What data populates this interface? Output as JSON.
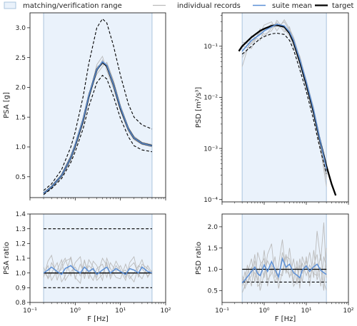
{
  "legend": {
    "range_label": "matching/verification range",
    "records_label": "individual records",
    "mean_label": "suite mean",
    "target_label": "target"
  },
  "colors": {
    "band_fill": "#eaf2fb",
    "band_edge": "#aac4de",
    "records": "#bbbbbb",
    "mean": "#5b8fd6",
    "target": "#000000"
  },
  "chart_data": [
    {
      "type": "line",
      "panel": "top-left",
      "xlabel": "",
      "ylabel": "PSA [g]",
      "xscale": "log",
      "xlim": [
        0.1,
        100
      ],
      "ylim": [
        0.15,
        3.25
      ],
      "xticks": [
        0.1,
        1,
        10,
        100
      ],
      "xtick_labels": [],
      "yticks": [
        0.5,
        1.0,
        1.5,
        2.0,
        2.5,
        3.0
      ],
      "ytick_labels": [
        "0.5",
        "1.0",
        "1.5",
        "2.0",
        "2.5",
        "3.0"
      ],
      "range": [
        0.2,
        50
      ],
      "x": [
        0.2,
        0.3,
        0.5,
        0.8,
        1,
        1.5,
        2,
        3,
        4,
        5,
        7,
        10,
        15,
        20,
        30,
        50
      ],
      "series": [
        {
          "name": "target",
          "style": "solid",
          "values": [
            0.22,
            0.33,
            0.52,
            0.82,
            1.02,
            1.45,
            1.85,
            2.3,
            2.42,
            2.36,
            2.05,
            1.65,
            1.3,
            1.15,
            1.06,
            1.02
          ]
        },
        {
          "style": "dashed",
          "values": [
            0.27,
            0.38,
            0.62,
            1.0,
            1.25,
            1.85,
            2.4,
            3.0,
            3.15,
            3.08,
            2.7,
            2.2,
            1.72,
            1.5,
            1.37,
            1.3
          ]
        },
        {
          "style": "dashed",
          "values": [
            0.2,
            0.3,
            0.47,
            0.74,
            0.92,
            1.31,
            1.68,
            2.08,
            2.2,
            2.14,
            1.85,
            1.48,
            1.17,
            1.02,
            0.95,
            0.92
          ]
        },
        {
          "name": "suite mean",
          "style": "mean",
          "values": [
            0.22,
            0.33,
            0.52,
            0.82,
            1.03,
            1.46,
            1.86,
            2.3,
            2.43,
            2.37,
            2.05,
            1.66,
            1.3,
            1.15,
            1.06,
            1.02
          ]
        }
      ],
      "records": [
        [
          0.21,
          0.32,
          0.5,
          0.78,
          0.99,
          1.4,
          1.83,
          2.38,
          2.52,
          2.28,
          1.98,
          1.6,
          1.26,
          1.12,
          1.04,
          1.0
        ],
        [
          0.23,
          0.34,
          0.54,
          0.86,
          1.06,
          1.5,
          1.9,
          2.22,
          2.35,
          2.42,
          2.12,
          1.7,
          1.33,
          1.18,
          1.08,
          1.04
        ],
        [
          0.22,
          0.33,
          0.53,
          0.8,
          1.04,
          1.44,
          1.82,
          2.26,
          2.46,
          2.33,
          2.0,
          1.63,
          1.29,
          1.14,
          1.05,
          1.01
        ],
        [
          0.22,
          0.32,
          0.51,
          0.83,
          1.01,
          1.48,
          1.88,
          2.35,
          2.38,
          2.4,
          2.08,
          1.68,
          1.31,
          1.16,
          1.07,
          1.03
        ]
      ]
    },
    {
      "type": "line",
      "panel": "top-right",
      "xlabel": "",
      "ylabel": "PSD [m²/s³]",
      "xscale": "log",
      "yscale": "log",
      "xlim": [
        0.1,
        100
      ],
      "ylim": [
        9e-05,
        0.45
      ],
      "xticks": [
        0.1,
        1,
        10,
        100
      ],
      "xtick_labels": [],
      "yticks": [
        0.0001,
        0.001,
        0.01,
        0.1
      ],
      "ytick_labels": [
        "10⁻⁴",
        "10⁻³",
        "10⁻²",
        "10⁻¹"
      ],
      "range": [
        0.3,
        30
      ],
      "x": [
        0.25,
        0.3,
        0.5,
        0.8,
        1,
        1.5,
        2,
        3,
        4,
        5,
        7,
        10,
        15,
        20,
        30,
        40,
        50
      ],
      "series": [
        {
          "name": "target",
          "style": "solid",
          "values": [
            0.08,
            0.1,
            0.15,
            0.2,
            0.22,
            0.25,
            0.26,
            0.24,
            0.18,
            0.12,
            0.05,
            0.018,
            0.005,
            0.0017,
            0.00045,
            0.0002,
            0.00012
          ]
        },
        {
          "style": "dashed",
          "values": [
            null,
            0.07,
            0.1,
            0.14,
            0.155,
            0.175,
            0.18,
            0.17,
            0.13,
            0.085,
            0.035,
            0.013,
            0.0035,
            0.0012,
            0.00032,
            null,
            null
          ]
        },
        {
          "name": "suite mean",
          "style": "mean",
          "values": [
            null,
            0.08,
            0.13,
            0.17,
            0.2,
            0.24,
            0.27,
            0.25,
            0.19,
            0.13,
            0.055,
            0.02,
            0.0055,
            0.0018,
            0.0004,
            null,
            null
          ]
        }
      ],
      "records": [
        [
          null,
          0.06,
          0.12,
          0.18,
          0.26,
          0.3,
          0.2,
          0.33,
          0.22,
          0.15,
          0.06,
          0.022,
          0.006,
          0.002,
          0.0003,
          null,
          null
        ],
        [
          null,
          0.1,
          0.09,
          0.22,
          0.17,
          0.2,
          0.32,
          0.21,
          0.16,
          0.1,
          0.045,
          0.016,
          0.0045,
          0.0015,
          0.00018,
          null,
          null
        ],
        [
          null,
          0.04,
          0.16,
          0.13,
          0.21,
          0.27,
          0.24,
          0.3,
          0.2,
          0.14,
          0.052,
          0.019,
          0.005,
          0.0019,
          0.0005,
          null,
          null
        ],
        [
          null,
          0.12,
          0.11,
          0.19,
          0.15,
          0.23,
          0.29,
          0.19,
          0.24,
          0.11,
          0.064,
          0.021,
          0.0062,
          0.0016,
          0.00025,
          null,
          null
        ]
      ]
    },
    {
      "type": "line",
      "panel": "bottom-left",
      "xlabel": "F [Hz]",
      "ylabel": "PSA ratio",
      "xscale": "log",
      "xlim": [
        0.1,
        100
      ],
      "ylim": [
        0.8,
        1.4
      ],
      "xticks": [
        0.1,
        1,
        10,
        100
      ],
      "xtick_labels": [
        "10⁻¹",
        "10⁰",
        "10¹",
        "10²"
      ],
      "yticks": [
        0.8,
        0.9,
        1.0,
        1.1,
        1.2,
        1.3,
        1.4
      ],
      "ytick_labels": [
        "0.8",
        "0.9",
        "1.0",
        "1.1",
        "1.2",
        "1.3",
        "1.4"
      ],
      "range": [
        0.2,
        50
      ],
      "x": [
        0.2,
        0.25,
        0.3,
        0.4,
        0.5,
        0.6,
        0.8,
        1,
        1.3,
        1.6,
        2,
        2.5,
        3,
        4,
        5,
        6,
        8,
        10,
        13,
        16,
        20,
        25,
        30,
        40,
        50
      ],
      "series": [
        {
          "name": "target",
          "style": "solid",
          "values": [
            1.0,
            1.0,
            1.0,
            1.0,
            1.0,
            1.0,
            1.0,
            1.0,
            1.0,
            1.0,
            1.0,
            1.0,
            1.0,
            1.0,
            1.0,
            1.0,
            1.0,
            1.0,
            1.0,
            1.0,
            1.0,
            1.0,
            1.0,
            1.0,
            1.0
          ]
        },
        {
          "style": "dashed",
          "values": [
            1.3,
            1.3,
            1.3,
            1.3,
            1.3,
            1.3,
            1.3,
            1.3,
            1.3,
            1.3,
            1.3,
            1.3,
            1.3,
            1.3,
            1.3,
            1.3,
            1.3,
            1.3,
            1.3,
            1.3,
            1.3,
            1.3,
            1.3,
            1.3,
            1.3
          ]
        },
        {
          "style": "dashed",
          "values": [
            0.9,
            0.9,
            0.9,
            0.9,
            0.9,
            0.9,
            0.9,
            0.9,
            0.9,
            0.9,
            0.9,
            0.9,
            0.9,
            0.9,
            0.9,
            0.9,
            0.9,
            0.9,
            0.9,
            0.9,
            0.9,
            0.9,
            0.9,
            0.9,
            0.9
          ]
        },
        {
          "name": "suite mean",
          "style": "mean",
          "values": [
            1.0,
            1.02,
            1.04,
            1.01,
            0.99,
            1.03,
            1.05,
            1.02,
            1.0,
            1.04,
            1.01,
            1.03,
            0.99,
            1.02,
            1.04,
            1.0,
            1.03,
            1.01,
            0.99,
            1.03,
            1.02,
            1.0,
            1.04,
            1.01,
            1.0
          ]
        }
      ],
      "records": [
        [
          0.97,
          1.08,
          1.12,
          0.95,
          1.06,
          1.1,
          0.98,
          1.07,
          1.11,
          0.96,
          1.09,
          1.04,
          0.97,
          1.1,
          1.05,
          0.98,
          1.08,
          1.02,
          0.95,
          1.07,
          1.11,
          0.97,
          1.06,
          1.03,
          0.99
        ],
        [
          1.04,
          0.96,
          1.0,
          1.07,
          0.94,
          0.98,
          1.11,
          0.97,
          0.93,
          1.09,
          0.96,
          1.08,
          1.05,
          0.95,
          1.1,
          1.03,
          0.97,
          0.96,
          1.06,
          0.98,
          0.94,
          1.04,
          1.09,
          0.97,
          1.02
        ],
        [
          0.99,
          1.05,
          0.95,
          1.02,
          1.09,
          0.95,
          1.01,
          1.04,
          0.98,
          1.08,
          1.0,
          0.95,
          1.03,
          1.06,
          0.97,
          1.07,
          1.01,
          1.05,
          0.97,
          1.04,
          1.07,
          0.99,
          0.96,
          1.05,
          1.0
        ],
        [
          1.01,
          0.97,
          1.07,
          0.99,
          1.03,
          1.08,
          1.1,
          0.96,
          1.06,
          0.99,
          1.05,
          1.02,
          0.95,
          0.99,
          1.07,
          0.96,
          1.05,
          1.0,
          1.02,
          0.96,
          1.0,
          1.05,
          1.03,
          0.98,
          1.01
        ]
      ]
    },
    {
      "type": "line",
      "panel": "bottom-right",
      "xlabel": "F [Hz]",
      "ylabel": "PSD ratio",
      "xscale": "log",
      "xlim": [
        0.1,
        100
      ],
      "ylim": [
        0.22,
        2.3
      ],
      "xticks": [
        0.1,
        1,
        10,
        100
      ],
      "xtick_labels": [
        "10⁻¹",
        "10⁰",
        "10¹",
        "10²"
      ],
      "yticks": [
        0.5,
        1.0,
        1.5,
        2.0
      ],
      "ytick_labels": [
        "0.5",
        "1.0",
        "1.5",
        "2.0"
      ],
      "range": [
        0.3,
        30
      ],
      "x": [
        0.3,
        0.35,
        0.4,
        0.5,
        0.6,
        0.7,
        0.8,
        1,
        1.2,
        1.5,
        1.8,
        2.2,
        2.7,
        3.3,
        4,
        5,
        6,
        7,
        8,
        10,
        12,
        15,
        18,
        22,
        26,
        30
      ],
      "series": [
        {
          "name": "target",
          "style": "solid",
          "values": [
            1.0,
            1.0,
            1.0,
            1.0,
            1.0,
            1.0,
            1.0,
            1.0,
            1.0,
            1.0,
            1.0,
            1.0,
            1.0,
            1.0,
            1.0,
            1.0,
            1.0,
            1.0,
            1.0,
            1.0,
            1.0,
            1.0,
            1.0,
            1.0,
            1.0,
            1.0
          ]
        },
        {
          "style": "dashed",
          "values": [
            0.7,
            0.7,
            0.7,
            0.7,
            0.7,
            0.7,
            0.7,
            0.7,
            0.7,
            0.7,
            0.7,
            0.7,
            0.7,
            0.7,
            0.7,
            0.7,
            0.7,
            0.7,
            0.7,
            0.7,
            0.7,
            0.7,
            0.7,
            0.7,
            0.7,
            0.7
          ]
        },
        {
          "name": "suite mean",
          "style": "mean",
          "values": [
            0.68,
            0.75,
            0.82,
            0.95,
            1.05,
            0.9,
            0.85,
            1.1,
            0.95,
            1.18,
            1.0,
            0.82,
            1.25,
            1.05,
            1.12,
            0.92,
            0.86,
            0.8,
            0.98,
            1.08,
            0.95,
            1.06,
            1.12,
            0.98,
            0.92,
            0.88
          ]
        }
      ],
      "records": [
        [
          0.45,
          0.62,
          0.9,
          1.25,
          0.7,
          1.4,
          1.2,
          0.8,
          1.35,
          1.6,
          0.8,
          1.1,
          1.7,
          0.9,
          1.5,
          0.7,
          1.2,
          0.55,
          1.3,
          1.0,
          1.4,
          0.8,
          1.9,
          1.2,
          2.1,
          0.8
        ],
        [
          0.8,
          0.55,
          0.7,
          0.85,
          1.35,
          0.6,
          0.65,
          1.45,
          0.75,
          0.9,
          1.3,
          0.55,
          0.95,
          1.35,
          0.8,
          1.25,
          0.65,
          1.1,
          0.7,
          1.3,
          0.6,
          1.45,
          0.75,
          1.05,
          0.5,
          1.5
        ],
        [
          0.6,
          0.95,
          0.65,
          1.05,
          0.9,
          0.75,
          1.1,
          1.25,
          0.6,
          1.1,
          0.95,
          0.75,
          1.4,
          1.0,
          0.85,
          0.9,
          1.05,
          0.7,
          1.15,
          0.85,
          1.1,
          0.9,
          0.85,
          1.35,
          0.7,
          0.5
        ],
        [
          0.85,
          0.7,
          1.1,
          0.6,
          1.2,
          0.95,
          0.5,
          0.9,
          1.2,
          1.0,
          0.7,
          0.9,
          0.85,
          1.3,
          1.25,
          0.6,
          0.75,
          1.25,
          0.9,
          1.2,
          0.8,
          1.1,
          1.35,
          0.6,
          1.3,
          1.05
        ]
      ]
    }
  ]
}
